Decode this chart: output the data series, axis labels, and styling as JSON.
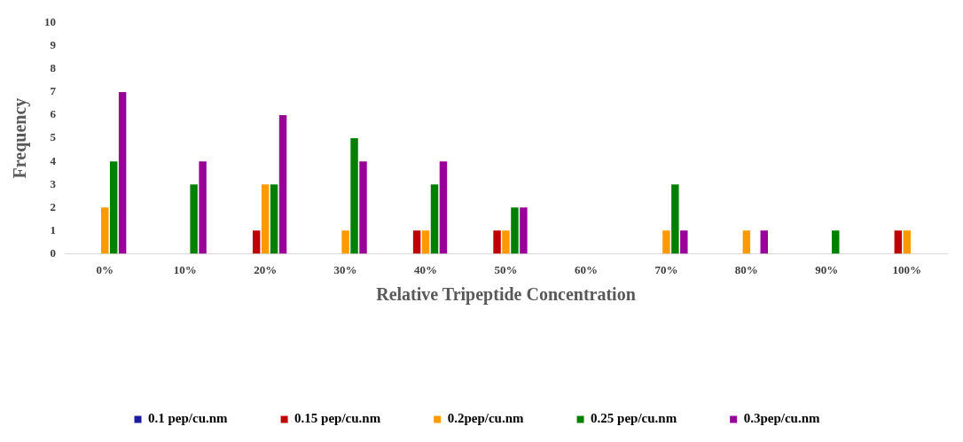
{
  "chart_data": {
    "type": "bar",
    "xlabel": "Relative Tripeptide Concentration",
    "ylabel": "Frequency",
    "categories": [
      "0%",
      "10%",
      "20%",
      "30%",
      "40%",
      "50%",
      "60%",
      "70%",
      "80%",
      "90%",
      "100%"
    ],
    "series": [
      {
        "name": "0.1 pep/cu.nm",
        "color": "#1a1aa6",
        "values": [
          0,
          0,
          0,
          0,
          0,
          0,
          0,
          0,
          0,
          0,
          0
        ]
      },
      {
        "name": "0.15 pep/cu.nm",
        "color": "#c00000",
        "values": [
          0,
          0,
          1,
          0,
          1,
          1,
          0,
          0,
          0,
          0,
          1
        ]
      },
      {
        "name": "0.2pep/cu.nm",
        "color": "#ff9900",
        "values": [
          2,
          0,
          3,
          1,
          1,
          1,
          0,
          1,
          1,
          0,
          1
        ]
      },
      {
        "name": "0.25 pep/cu.nm",
        "color": "#008000",
        "values": [
          4,
          3,
          3,
          5,
          3,
          2,
          0,
          3,
          0,
          1,
          0
        ]
      },
      {
        "name": "0.3pep/cu.nm",
        "color": "#990099",
        "values": [
          7,
          4,
          6,
          4,
          4,
          2,
          0,
          1,
          1,
          0,
          0
        ]
      }
    ],
    "ylim": [
      0,
      10
    ],
    "yticks": [
      0,
      1,
      2,
      3,
      4,
      5,
      6,
      7,
      8,
      9,
      10
    ],
    "grid": false,
    "legend": "bottom"
  }
}
